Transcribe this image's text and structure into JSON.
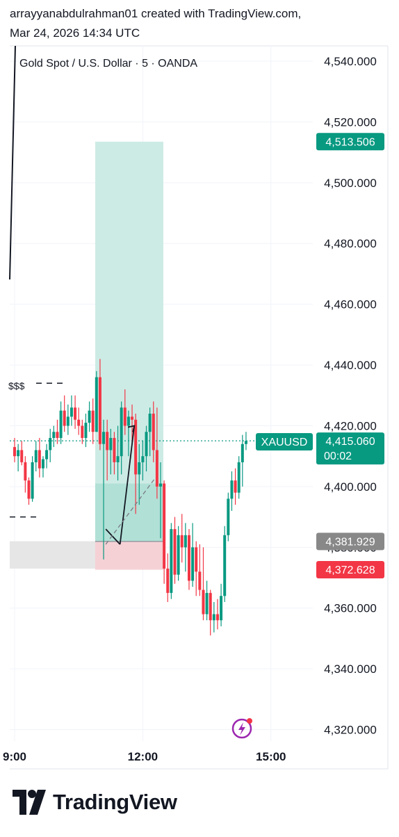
{
  "header": {
    "line1": "arrayyanabdulrahman01 created with TradingView.com,",
    "line2": "Mar 24, 2026 14:34 UTC"
  },
  "symbol_title": "Gold Spot / U.S. Dollar · 5 · OANDA",
  "ticker_label": "XAUUSD",
  "liquidity_label": "$$$",
  "brand": {
    "name": "TradingView"
  },
  "colors": {
    "up": "#089981",
    "down": "#f23645",
    "profit_zone": "#cdebe5",
    "loss_zone": "#f5d1d5",
    "price_badge": "#089981",
    "gray_badge": "#888888",
    "stop_badge": "#f23645",
    "shaded_zone": "#e6e6e6",
    "accent_icon": "#9c27b0"
  },
  "chart_data": {
    "type": "candlestick",
    "y_axis": {
      "ylim": [
        4314,
        4547
      ],
      "ticks": [
        "4,540.000",
        "4,520.000",
        "4,500.000",
        "4,480.000",
        "4,460.000",
        "4,440.000",
        "4,420.000",
        "4,400.000",
        "4,380.000",
        "4,360.000",
        "4,340.000",
        "4,320.000"
      ],
      "tick_values": [
        4540,
        4520,
        4500,
        4480,
        4460,
        4440,
        4420,
        4400,
        4380,
        4360,
        4340,
        4320
      ]
    },
    "x_axis": {
      "ticks": [
        "9:00",
        "12:00",
        "15:00"
      ],
      "tick_bars": [
        0,
        36,
        72
      ]
    },
    "grid": true,
    "price_badges": [
      {
        "label": "4,513.506",
        "value": 4513.506,
        "color": "#089981"
      },
      {
        "label": "4,415.060",
        "value": 4415.06,
        "color": "#089981",
        "sub": "00:02"
      },
      {
        "label": "4,381.929",
        "value": 4381.929,
        "color": "#888888"
      },
      {
        "label": "4,372.628",
        "value": 4372.628,
        "color": "#f23645"
      }
    ],
    "current_price": 4415.06,
    "position": {
      "entry": 4381.929,
      "stop": 4372.628,
      "target": 4513.506,
      "start_bar": 24,
      "end_bar": 41
    },
    "shaded_zone": {
      "top": 4382,
      "bottom": 4373
    },
    "liquidity_levels": [
      4434,
      4390
    ],
    "candles": [
      [
        4413,
        4416,
        4408,
        4410
      ],
      [
        4410,
        4414,
        4405,
        4412
      ],
      [
        4412,
        4415,
        4407,
        4408
      ],
      [
        4408,
        4410,
        4398,
        4402
      ],
      [
        4402,
        4403,
        4394,
        4396
      ],
      [
        4396,
        4410,
        4395,
        4408
      ],
      [
        4408,
        4415,
        4405,
        4412
      ],
      [
        4412,
        4416,
        4403,
        4406
      ],
      [
        4406,
        4410,
        4403,
        4409
      ],
      [
        4409,
        4414,
        4406,
        4412
      ],
      [
        4412,
        4419,
        4408,
        4416
      ],
      [
        4416,
        4420,
        4413,
        4418
      ],
      [
        4418,
        4422,
        4414,
        4416
      ],
      [
        4416,
        4428,
        4414,
        4425
      ],
      [
        4425,
        4430,
        4418,
        4420
      ],
      [
        4420,
        4427,
        4417,
        4423
      ],
      [
        4423,
        4430,
        4420,
        4426
      ],
      [
        4426,
        4430,
        4419,
        4422
      ],
      [
        4422,
        4426,
        4417,
        4420
      ],
      [
        4420,
        4422,
        4414,
        4416
      ],
      [
        4416,
        4424,
        4413,
        4421
      ],
      [
        4421,
        4428,
        4418,
        4425
      ],
      [
        4425,
        4429,
        4414,
        4418
      ],
      [
        4418,
        4438,
        4418,
        4436
      ],
      [
        4436,
        4442,
        4412,
        4414
      ],
      [
        4414,
        4422,
        4376,
        4418
      ],
      [
        4418,
        4422,
        4402,
        4412
      ],
      [
        4412,
        4419,
        4404,
        4416
      ],
      [
        4416,
        4418,
        4404,
        4408
      ],
      [
        4408,
        4420,
        4402,
        4410
      ],
      [
        4410,
        4428,
        4404,
        4426
      ],
      [
        4426,
        4432,
        4417,
        4420
      ],
      [
        4420,
        4425,
        4410,
        4423
      ],
      [
        4423,
        4427,
        4414,
        4422
      ],
      [
        4422,
        4424,
        4391,
        4404
      ],
      [
        4404,
        4414,
        4394,
        4408
      ],
      [
        4408,
        4415,
        4402,
        4410
      ],
      [
        4410,
        4420,
        4405,
        4418
      ],
      [
        4418,
        4426,
        4410,
        4424
      ],
      [
        4424,
        4428,
        4408,
        4412
      ],
      [
        4412,
        4426,
        4396,
        4400
      ],
      [
        4400,
        4408,
        4383,
        4401
      ],
      [
        4401,
        4402,
        4368,
        4373
      ],
      [
        4373,
        4378,
        4362,
        4365
      ],
      [
        4365,
        4388,
        4363,
        4386
      ],
      [
        4386,
        4390,
        4368,
        4371
      ],
      [
        4371,
        4387,
        4369,
        4384
      ],
      [
        4384,
        4391,
        4375,
        4380
      ],
      [
        4380,
        4388,
        4372,
        4384
      ],
      [
        4384,
        4386,
        4366,
        4369
      ],
      [
        4369,
        4388,
        4367,
        4380
      ],
      [
        4380,
        4382,
        4364,
        4372
      ],
      [
        4372,
        4381,
        4364,
        4366
      ],
      [
        4366,
        4380,
        4356,
        4358
      ],
      [
        4358,
        4369,
        4356,
        4365
      ],
      [
        4365,
        4366,
        4351,
        4356
      ],
      [
        4356,
        4362,
        4352,
        4358
      ],
      [
        4358,
        4363,
        4353,
        4356
      ],
      [
        4356,
        4368,
        4354,
        4364
      ],
      [
        4364,
        4387,
        4362,
        4384
      ],
      [
        4384,
        4398,
        4382,
        4396
      ],
      [
        4396,
        4405,
        4392,
        4402
      ],
      [
        4402,
        4406,
        4394,
        4398
      ],
      [
        4398,
        4410,
        4396,
        4408
      ],
      [
        4408,
        4417,
        4400,
        4414
      ],
      [
        4414,
        4418,
        4412,
        4415
      ]
    ],
    "annotations": [
      {
        "type": "line",
        "from": [
          34,
          4420
        ],
        "to": [
          30,
          4381
        ]
      },
      {
        "type": "line",
        "from": [
          30,
          4381
        ],
        "to": [
          26,
          4386
        ]
      },
      {
        "type": "dashed_line",
        "from": [
          26,
          4381
        ],
        "to": [
          40,
          4403
        ]
      }
    ]
  }
}
